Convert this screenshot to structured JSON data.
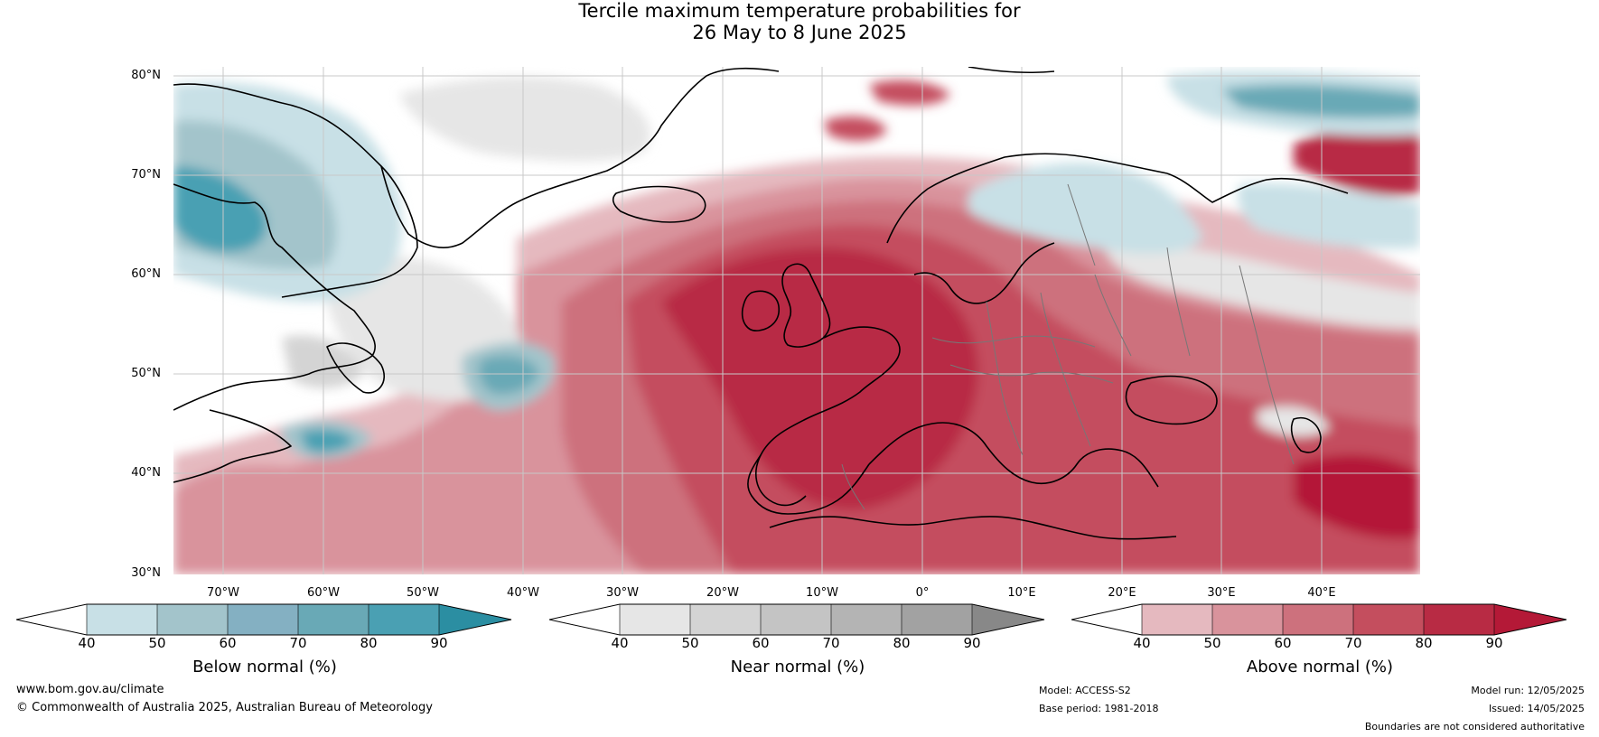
{
  "title": {
    "line1": "Tercile maximum temperature probabilities for",
    "line2": "26 May to 8 June 2025"
  },
  "map": {
    "projection": "equirectangular",
    "lon_range": [
      -80,
      45
    ],
    "lat_range": [
      30,
      81
    ],
    "lat_labels": [
      "80°N",
      "70°N",
      "60°N",
      "50°N",
      "40°N",
      "30°N"
    ],
    "lon_labels": [
      "70°W",
      "60°W",
      "50°W",
      "40°W",
      "30°W",
      "20°W",
      "10°W",
      "0°",
      "10°E",
      "20°E",
      "30°E",
      "40°E"
    ]
  },
  "colorbars": [
    {
      "label": "Below normal (%)",
      "ticks": [
        "40",
        "50",
        "60",
        "70",
        "80",
        "90"
      ],
      "colors": [
        "#ffffff",
        "#c8e0e6",
        "#a3c4cb",
        "#84b0c2",
        "#69a9b6",
        "#4aa0b3",
        "#2b8ea2"
      ]
    },
    {
      "label": "Near normal (%)",
      "ticks": [
        "40",
        "50",
        "60",
        "70",
        "80",
        "90"
      ],
      "colors": [
        "#ffffff",
        "#e6e6e6",
        "#d4d4d4",
        "#c4c4c4",
        "#b4b4b4",
        "#a2a2a2",
        "#888888"
      ]
    },
    {
      "label": "Above normal (%)",
      "ticks": [
        "40",
        "50",
        "60",
        "70",
        "80",
        "90"
      ],
      "colors": [
        "#ffffff",
        "#e5b9bf",
        "#d9939c",
        "#cd717d",
        "#c44e5e",
        "#b82b44",
        "#b41937"
      ]
    }
  ],
  "footer": {
    "url": "www.bom.gov.au/climate",
    "copyright": "© Commonwealth of Australia 2025, Australian Bureau of Meteorology",
    "model": "Model: ACCESS-S2",
    "base_period": "Base period: 1981-2018",
    "model_run": "Model run: 12/05/2025",
    "issued": "Issued: 14/05/2025",
    "disclaimer": "Boundaries are not considered authoritative"
  }
}
